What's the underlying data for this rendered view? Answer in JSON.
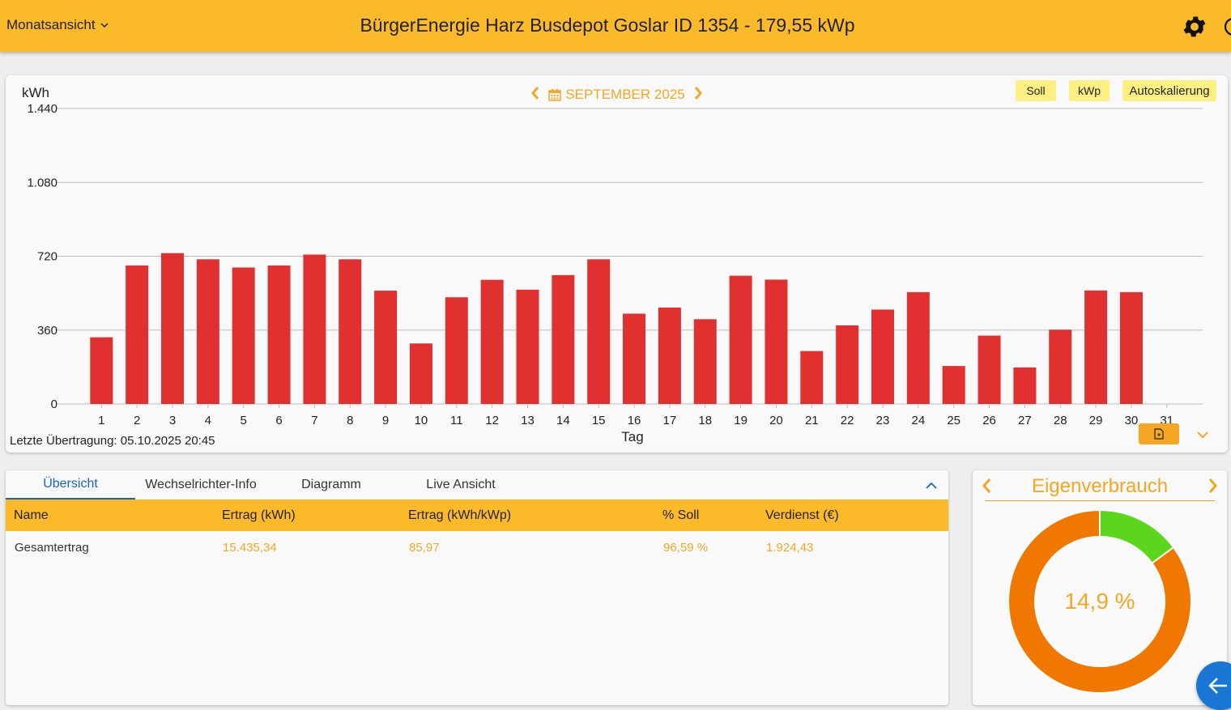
{
  "header": {
    "view_label": "Monatsansicht",
    "title": "BürgerEnergie Harz Busdepot Goslar ID 1354 - 179,55 kWp"
  },
  "chart_toolbar": {
    "month_label": "SEPTEMBER 2025",
    "soll_label": "Soll",
    "kwp_label": "kWp",
    "autoscale_label": "Autoskalierung"
  },
  "chart_data": {
    "type": "bar",
    "title": "",
    "ylabel": "kWh",
    "xlabel": "Tag",
    "ylim": [
      0,
      1440
    ],
    "yticks": [
      0,
      360,
      720,
      1080,
      1440
    ],
    "ytick_labels": [
      "0",
      "360",
      "720",
      "1.080",
      "1.440"
    ],
    "categories": [
      "1",
      "2",
      "3",
      "4",
      "5",
      "6",
      "7",
      "8",
      "9",
      "10",
      "11",
      "12",
      "13",
      "14",
      "15",
      "16",
      "17",
      "18",
      "19",
      "20",
      "21",
      "22",
      "23",
      "24",
      "25",
      "26",
      "27",
      "28",
      "29",
      "30",
      "31"
    ],
    "values": [
      325,
      675,
      735,
      705,
      665,
      675,
      728,
      705,
      552,
      295,
      520,
      605,
      557,
      628,
      705,
      440,
      470,
      413,
      625,
      606,
      258,
      383,
      460,
      545,
      185,
      333,
      178,
      362,
      553,
      545,
      0
    ],
    "bar_color": "#e03030",
    "grid": true
  },
  "chart_footer": {
    "last_transfer": "Letzte Übertragung: 05.10.2025 20:45"
  },
  "tabs": [
    "Übersicht",
    "Wechselrichter-Info",
    "Diagramm",
    "Live Ansicht"
  ],
  "table": {
    "headers": [
      "Name",
      "Ertrag (kWh)",
      "Ertrag (kWh/kWp)",
      "% Soll",
      "Verdienst (€)"
    ],
    "rows": [
      [
        "Gesamtertrag",
        "15.435,34",
        "85,97",
        "96,59 %",
        "1.924,43"
      ]
    ]
  },
  "eigenverbrauch": {
    "title": "Eigenverbrauch",
    "value_label": "14,9 %",
    "fraction": 0.149,
    "own_color": "#5cd61c",
    "rest_color": "#f07800"
  },
  "colors": {
    "accent": "#fbba2a",
    "orange_text": "#f5a623",
    "tab_active": "#1565c0",
    "fab": "#1976d2"
  }
}
